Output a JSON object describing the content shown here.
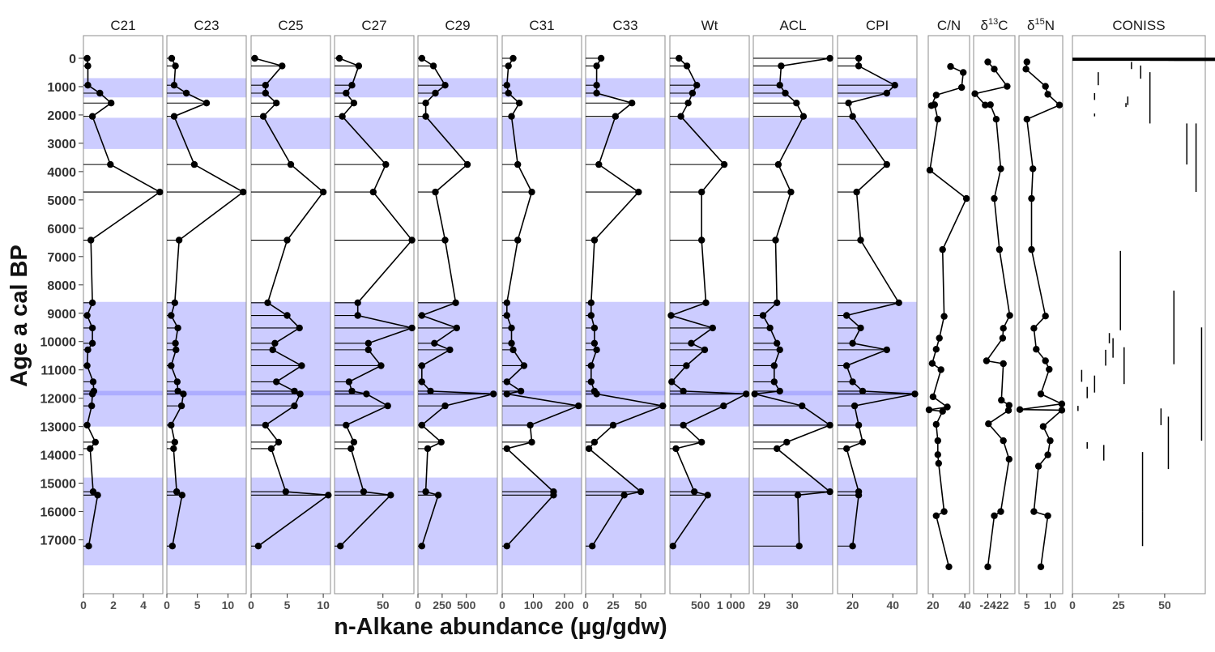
{
  "chart_data": {
    "type": "line",
    "ylabel": "Age a cal BP",
    "xlabel": "n-Alkane abundance (µg/gdw)",
    "y_ticks": [
      0,
      1000,
      2000,
      3000,
      4000,
      5000,
      6000,
      7000,
      8000,
      9000,
      10000,
      11000,
      12000,
      13000,
      14000,
      15000,
      16000,
      17000
    ],
    "ylim": [
      -800,
      18900
    ],
    "depths": [
      0,
      270,
      950,
      1230,
      1580,
      2050,
      3750,
      4720,
      6420,
      8630,
      9080,
      9520,
      10060,
      10290,
      10850,
      11420,
      11750,
      11850,
      12270,
      12950,
      13550,
      13780,
      15300,
      15420,
      17220
    ],
    "shaded_bands": [
      [
        700,
        1380
      ],
      [
        2100,
        3200
      ],
      [
        8600,
        13000
      ],
      [
        11740,
        11900
      ],
      [
        14800,
        17900
      ]
    ],
    "panels": [
      {
        "title": "C21",
        "xlim": [
          0,
          5.3
        ],
        "xticks": [
          0,
          2,
          4
        ],
        "xtick_labels": [
          "0",
          "2",
          "4"
        ],
        "values": [
          0.25,
          0.3,
          0.3,
          1.1,
          1.85,
          0.6,
          1.8,
          5.1,
          0.5,
          0.6,
          0.25,
          0.6,
          0.6,
          0.3,
          0.25,
          0.65,
          0.7,
          0.6,
          0.55,
          0.25,
          0.8,
          0.45,
          0.65,
          0.95,
          0.35
        ]
      },
      {
        "title": "C23",
        "xlim": [
          0,
          13
        ],
        "xticks": [
          0,
          5,
          10
        ],
        "xtick_labels": [
          "0",
          "5",
          "10"
        ],
        "values": [
          0.8,
          1.4,
          1.2,
          3.2,
          6.5,
          1.2,
          4.5,
          12.5,
          2.0,
          1.3,
          0.7,
          1.8,
          1.4,
          1.5,
          0.7,
          1.7,
          1.8,
          2.7,
          2.4,
          0.7,
          1.3,
          1.1,
          1.6,
          2.5,
          0.9
        ]
      },
      {
        "title": "C25",
        "xlim": [
          0,
          11
        ],
        "xticks": [
          0,
          5,
          10
        ],
        "xtick_labels": [
          "0",
          "5",
          "10"
        ],
        "values": [
          0.5,
          4.3,
          2.0,
          2.0,
          3.5,
          1.7,
          5.5,
          10.0,
          5.0,
          2.3,
          5.0,
          6.7,
          3.3,
          3.0,
          7.0,
          3.5,
          6.0,
          6.8,
          6.0,
          2.0,
          3.8,
          2.8,
          4.8,
          10.7,
          1.0
        ]
      },
      {
        "title": "C27",
        "xlim": [
          0,
          82
        ],
        "xticks": [
          50
        ],
        "xtick_labels": [
          "50"
        ],
        "values": [
          5,
          25,
          18,
          12,
          20,
          8,
          53,
          40,
          80,
          24,
          24,
          80,
          35,
          35,
          48,
          15,
          18,
          33,
          55,
          12,
          20,
          17,
          30,
          58,
          6
        ]
      },
      {
        "title": "C29",
        "xlim": [
          0,
          820
        ],
        "xticks": [
          0,
          250,
          500
        ],
        "xtick_labels": [
          "0",
          "250",
          "500"
        ],
        "values": [
          40,
          160,
          280,
          180,
          80,
          80,
          510,
          180,
          280,
          390,
          40,
          400,
          170,
          330,
          40,
          40,
          130,
          780,
          280,
          40,
          240,
          100,
          80,
          210,
          40
        ]
      },
      {
        "title": "C31",
        "xlim": [
          0,
          255
        ],
        "xticks": [
          0,
          100,
          200
        ],
        "xtick_labels": [
          "0",
          "100",
          "200"
        ],
        "values": [
          35,
          20,
          15,
          20,
          55,
          30,
          50,
          95,
          50,
          15,
          15,
          30,
          30,
          35,
          70,
          15,
          60,
          15,
          245,
          90,
          95,
          15,
          165,
          165,
          15
        ]
      },
      {
        "title": "C33",
        "xlim": [
          0,
          72
        ],
        "xticks": [
          0,
          25,
          50
        ],
        "xtick_labels": [
          "0",
          "25",
          "50"
        ],
        "values": [
          14,
          10,
          10,
          10,
          42,
          27,
          12,
          48,
          8,
          5,
          5,
          8,
          8,
          10,
          5,
          5,
          8,
          10,
          70,
          25,
          8,
          3,
          50,
          35,
          6
        ]
      },
      {
        "title": "Wt",
        "xlim": [
          0,
          1300
        ],
        "xticks": [
          500,
          1000
        ],
        "xtick_labels": [
          "500",
          "1 000"
        ],
        "values": [
          150,
          280,
          440,
          370,
          300,
          180,
          890,
          520,
          520,
          590,
          20,
          700,
          350,
          570,
          270,
          30,
          220,
          1250,
          880,
          220,
          520,
          100,
          400,
          620,
          50
        ]
      },
      {
        "title": "ACL",
        "xlim": [
          28.6,
          31.45
        ],
        "xticks": [
          29,
          30
        ],
        "xtick_labels": [
          "29",
          "30"
        ],
        "values": [
          31.35,
          29.6,
          29.55,
          29.75,
          30.15,
          30.4,
          29.5,
          29.95,
          29.4,
          29.45,
          28.95,
          29.2,
          29.45,
          29.55,
          29.35,
          29.35,
          29.55,
          28.65,
          30.35,
          31.35,
          29.8,
          29.45,
          31.35,
          30.2,
          30.25
        ]
      },
      {
        "title": "CPI",
        "xlim": [
          12.5,
          52
        ],
        "xticks": [
          20,
          40
        ],
        "xtick_labels": [
          "20",
          "40"
        ],
        "values": [
          23,
          23,
          41,
          37,
          18,
          20,
          37,
          22,
          24,
          43,
          17,
          24,
          20,
          37,
          17,
          20,
          25,
          51,
          21,
          23,
          25,
          17,
          23,
          23,
          20
        ]
      },
      {
        "title": "C/N",
        "xlim": [
          17,
          43
        ],
        "xticks": [
          20,
          40
        ],
        "xtick_labels": [
          "20",
          "40"
        ],
        "y": [
          290,
          500,
          1030,
          1300,
          1670,
          1640,
          2150,
          3950,
          4950,
          6750,
          9110,
          9880,
          10270,
          10770,
          10990,
          11950,
          12310,
          12410,
          12460,
          12920,
          13500,
          13990,
          14300,
          16000,
          16150,
          17950
        ],
        "values": [
          31,
          39,
          38,
          22,
          19,
          21,
          23,
          18,
          41,
          26,
          27,
          24,
          22,
          19.5,
          25,
          20,
          29,
          17.5,
          26,
          22,
          23,
          23,
          23.5,
          27,
          22,
          30
        ]
      },
      {
        "title": "δ13C",
        "title_main": "δ",
        "title_sup": "13",
        "title_end": "C",
        "xlim": [
          -26.2,
          -19.8
        ],
        "xticks": [
          -24,
          -22
        ],
        "xtick_labels": [
          "-24",
          "-22"
        ],
        "y": [
          130,
          380,
          990,
          1250,
          1650,
          1640,
          2150,
          3900,
          4950,
          6750,
          9080,
          9530,
          9880,
          10680,
          10780,
          12070,
          12250,
          12430,
          12900,
          13500,
          14150,
          16000,
          16150,
          17950
        ],
        "values": [
          -24.0,
          -23.0,
          -21.0,
          -26.0,
          -24.4,
          -23.6,
          -22.7,
          -22.0,
          -23.0,
          -22.2,
          -20.6,
          -21.6,
          -21.7,
          -24.2,
          -21.6,
          -21.9,
          -20.7,
          -20.8,
          -23.9,
          -21.6,
          -20.7,
          -22.0,
          -23.0,
          -24.0
        ]
      },
      {
        "title": "δ15N",
        "title_main": "δ",
        "title_sup": "15",
        "title_end": "N",
        "xlim": [
          3.3,
          12.7
        ],
        "xticks": [
          5,
          10
        ],
        "xtick_labels": [
          "5",
          "10"
        ],
        "y": [
          130,
          380,
          990,
          1270,
          1650,
          2150,
          3900,
          4950,
          6750,
          9100,
          9530,
          10270,
          10680,
          10980,
          11850,
          12200,
          12400,
          12420,
          13000,
          13500,
          14000,
          14400,
          16000,
          16150,
          17950
        ],
        "values": [
          5.0,
          4.8,
          9.0,
          9.5,
          12.0,
          5.0,
          6.3,
          6.0,
          6.0,
          9.0,
          6.5,
          7.0,
          9.0,
          9.8,
          8.0,
          12.5,
          3.5,
          12.5,
          8.5,
          10.0,
          9.5,
          7.5,
          6.5,
          9.5,
          8.0
        ]
      },
      {
        "title": "CONISS",
        "xlim": [
          0,
          72
        ],
        "xticks": [
          0,
          25,
          50
        ],
        "xtick_labels": [
          "0",
          "25",
          "50"
        ]
      }
    ]
  }
}
